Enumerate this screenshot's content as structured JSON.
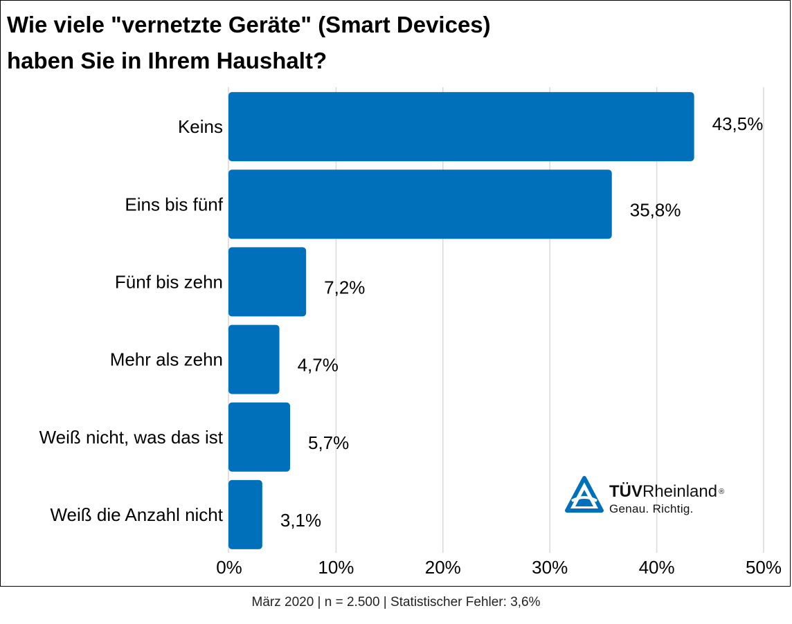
{
  "chart_data": {
    "type": "bar",
    "orientation": "horizontal",
    "title_lines": [
      "Wie viele \"vernetzte Geräte\" (Smart Devices)",
      "haben Sie in Ihrem Haushalt?"
    ],
    "categories": [
      "Keins",
      "Eins bis fünf",
      "Fünf bis zehn",
      "Mehr als zehn",
      "Weiß nicht, was das ist",
      "Weiß die Anzahl nicht"
    ],
    "values": [
      43.5,
      35.8,
      7.2,
      4.7,
      5.7,
      3.1
    ],
    "value_labels": [
      "43,5%",
      "35,8%",
      "7,2%",
      "4,7%",
      "5,7%",
      "3,1%"
    ],
    "xlim": [
      0,
      50
    ],
    "xticks": [
      0,
      10,
      20,
      30,
      40,
      50
    ],
    "xtick_labels": [
      "0%",
      "10%",
      "20%",
      "30%",
      "40%",
      "50%"
    ],
    "grid": true,
    "bar_color": "#0070bb",
    "grid_color": "#d9d9d9"
  },
  "logo": {
    "brand_bold": "TÜV",
    "brand_regular": "Rheinland",
    "registered": "®",
    "tagline": "Genau. Richtig.",
    "color": "#0070bb"
  },
  "footer": {
    "text": "März 2020 | n = 2.500 | Statistischer Fehler: 3,6%"
  }
}
